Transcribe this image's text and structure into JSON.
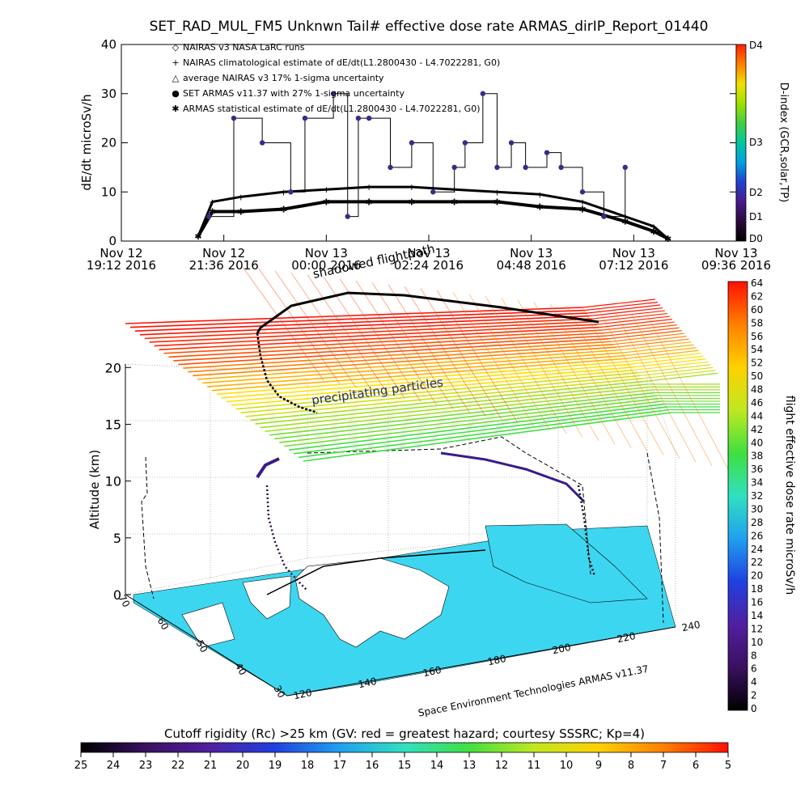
{
  "title": "SET_RAD_MUL_FM5 Unknwn Tail#  effective dose rate ARMAS_dirIP_Report_01440",
  "colors": {
    "dindex_scale": [
      "#000000",
      "#2a0a3a",
      "#4a1a8a",
      "#2040d0",
      "#00a0e0",
      "#00c8a0",
      "#40d040",
      "#a0e000",
      "#f0e000",
      "#ff8000",
      "#ff2000"
    ],
    "rate_scale": [
      "#000000",
      "#3a1060",
      "#5020a0",
      "#2040e0",
      "#20a0f0",
      "#30e0c0",
      "#40e040",
      "#c0e820",
      "#ffd000",
      "#ff8000",
      "#ff1000"
    ],
    "ocean": "#3dd6f0",
    "trace_marker": "#3b2a8a"
  },
  "top_chart": {
    "ylabel": "dE/dt microSv/h",
    "yticks": [
      "0",
      "10",
      "20",
      "30",
      "40"
    ],
    "xticks": [
      {
        "line1": "Nov 12",
        "line2": "19:12 2016"
      },
      {
        "line1": "Nov 12",
        "line2": "21:36 2016"
      },
      {
        "line1": "Nov 13",
        "line2": "00:00 2016"
      },
      {
        "line1": "Nov 13",
        "line2": "02:24 2016"
      },
      {
        "line1": "Nov 13",
        "line2": "04:48 2016"
      },
      {
        "line1": "Nov 13",
        "line2": "07:12 2016"
      },
      {
        "line1": "Nov 13",
        "line2": "09:36 2016"
      }
    ],
    "legend": [
      {
        "symbol": "◇",
        "text": "NAIRAS v3 NASA LaRC runs"
      },
      {
        "symbol": "+",
        "text": "NAIRAS climatological estimate of dE/dt(L1.2800430 - L4.7022281, G0)"
      },
      {
        "symbol": "△",
        "text": "average NAIRAS v3 17% 1-sigma uncertainty"
      },
      {
        "symbol": "●",
        "text": "SET ARMAS v11.37 with 27% 1-sigma uncertainty"
      },
      {
        "symbol": "✱",
        "text": "ARMAS statistical estimate of dE/dt(L1.2800430 - L4.7022281, G0)"
      }
    ],
    "colorbar_label": "D-index (GCR,solar,TP)",
    "colorbar_ticks": [
      "D4",
      "D3",
      "D2",
      "D1",
      "D0"
    ]
  },
  "chart_data": [
    {
      "type": "scatter",
      "title": "SET_RAD_MUL_FM5 Unknwn Tail#  effective dose rate ARMAS_dirIP_Report_01440",
      "xlabel": "",
      "ylabel": "dE/dt microSv/h",
      "ylim": [
        0,
        40
      ],
      "x_range": [
        "Nov 12 19:12 2016",
        "Nov 13 09:36 2016"
      ],
      "series": [
        {
          "name": "NAIRAS climatological estimate of dE/dt(L1.2800430 - L4.7022281, G0)",
          "x": [
            "Nov 12 21:00",
            "Nov 12 21:20",
            "Nov 12 22:00",
            "Nov 12 23:00",
            "Nov 13 00:00",
            "Nov 13 01:00",
            "Nov 13 02:00",
            "Nov 13 03:00",
            "Nov 13 04:00",
            "Nov 13 05:00",
            "Nov 13 06:00",
            "Nov 13 07:00",
            "Nov 13 07:40",
            "Nov 13 08:00"
          ],
          "y": [
            1,
            8,
            9,
            10,
            10.5,
            11,
            11,
            10.5,
            10,
            9.5,
            8,
            5,
            3,
            0.5
          ]
        },
        {
          "name": "ARMAS statistical estimate of dE/dt(L1.2800430 - L4.7022281, G0)",
          "x": [
            "Nov 12 21:00",
            "Nov 12 21:20",
            "Nov 12 22:00",
            "Nov 12 23:00",
            "Nov 13 00:00",
            "Nov 13 01:00",
            "Nov 13 02:00",
            "Nov 13 03:00",
            "Nov 13 04:00",
            "Nov 13 05:00",
            "Nov 13 06:00",
            "Nov 13 07:00",
            "Nov 13 07:40",
            "Nov 13 08:00"
          ],
          "y": [
            1,
            6,
            6,
            6.5,
            8,
            8,
            8,
            8,
            8,
            7,
            6.5,
            4,
            2,
            0.5
          ]
        },
        {
          "name": "SET ARMAS v11.37 with 27% 1-sigma uncertainty",
          "x": [
            "Nov 12 21:15",
            "Nov 12 21:50",
            "Nov 12 22:30",
            "Nov 12 23:10",
            "Nov 12 23:30",
            "Nov 13 00:10",
            "Nov 13 00:30",
            "Nov 13 00:45",
            "Nov 13 01:00",
            "Nov 13 01:30",
            "Nov 13 02:00",
            "Nov 13 02:30",
            "Nov 13 03:00",
            "Nov 13 03:15",
            "Nov 13 03:40",
            "Nov 13 04:00",
            "Nov 13 04:20",
            "Nov 13 04:40",
            "Nov 13 05:10",
            "Nov 13 05:30",
            "Nov 13 06:00",
            "Nov 13 06:30",
            "Nov 13 07:00"
          ],
          "y": [
            5,
            25,
            20,
            10,
            25,
            30,
            5,
            25,
            25,
            15,
            20,
            10,
            15,
            20,
            30,
            15,
            20,
            15,
            18,
            15,
            10,
            5,
            15
          ]
        }
      ]
    },
    {
      "type": "scatter",
      "xlabel": "Space Environment Technologies ARMAS v11.37",
      "ylabel": "Altitude (km)",
      "title": "",
      "x": [
        150,
        155,
        160,
        168,
        175,
        185,
        200,
        215,
        230
      ],
      "y": [
        0,
        5,
        11.5,
        20,
        23.5,
        23,
        22,
        14,
        0
      ],
      "z": [
        30,
        40,
        50,
        55,
        58,
        57,
        52,
        45,
        40
      ],
      "zlim": [
        0,
        20
      ],
      "x_ticks": [
        "120",
        "140",
        "160",
        "180",
        "200",
        "220",
        "240"
      ],
      "lat_ticks": [
        "30",
        "40",
        "50",
        "60",
        "70"
      ],
      "z_ticks": [
        "0",
        "5",
        "10",
        "15",
        "20"
      ],
      "annotations": [
        "precipitating particles",
        "shadowed flightpath"
      ],
      "colorbar_label": "flight effective dose rate microSv/h",
      "colorbar_ticks": [
        "0",
        "2",
        "4",
        "6",
        "8",
        "10",
        "12",
        "14",
        "16",
        "18",
        "20",
        "22",
        "24",
        "26",
        "28",
        "30",
        "32",
        "34",
        "36",
        "38",
        "40",
        "42",
        "44",
        "46",
        "48",
        "50",
        "52",
        "54",
        "56",
        "58",
        "60",
        "62",
        "64"
      ]
    },
    {
      "type": "heatmap",
      "title": "Cutoff rigidity (Rc) >25 km (GV: red = greatest hazard; courtesy SSSRC; Kp=4)",
      "colorbar_ticks": [
        "25",
        "24",
        "23",
        "22",
        "21",
        "20",
        "19",
        "18",
        "17",
        "16",
        "15",
        "14",
        "13",
        "12",
        "11",
        "10",
        "9",
        "8",
        "7",
        "6",
        "5"
      ],
      "range": [
        25,
        5
      ]
    }
  ],
  "bottom_bar": {
    "title": "Cutoff rigidity (Rc) >25 km (GV: red = greatest hazard; courtesy SSSRC; Kp=4)"
  },
  "globe_labels": {
    "z_axis": "Altitude (km)",
    "footer": "Space Environment Technologies ARMAS v11.37",
    "annot1": "precipitating particles",
    "annot2": "shadowed flightpath",
    "right_bar_label": "flight effective dose rate microSv/h"
  }
}
